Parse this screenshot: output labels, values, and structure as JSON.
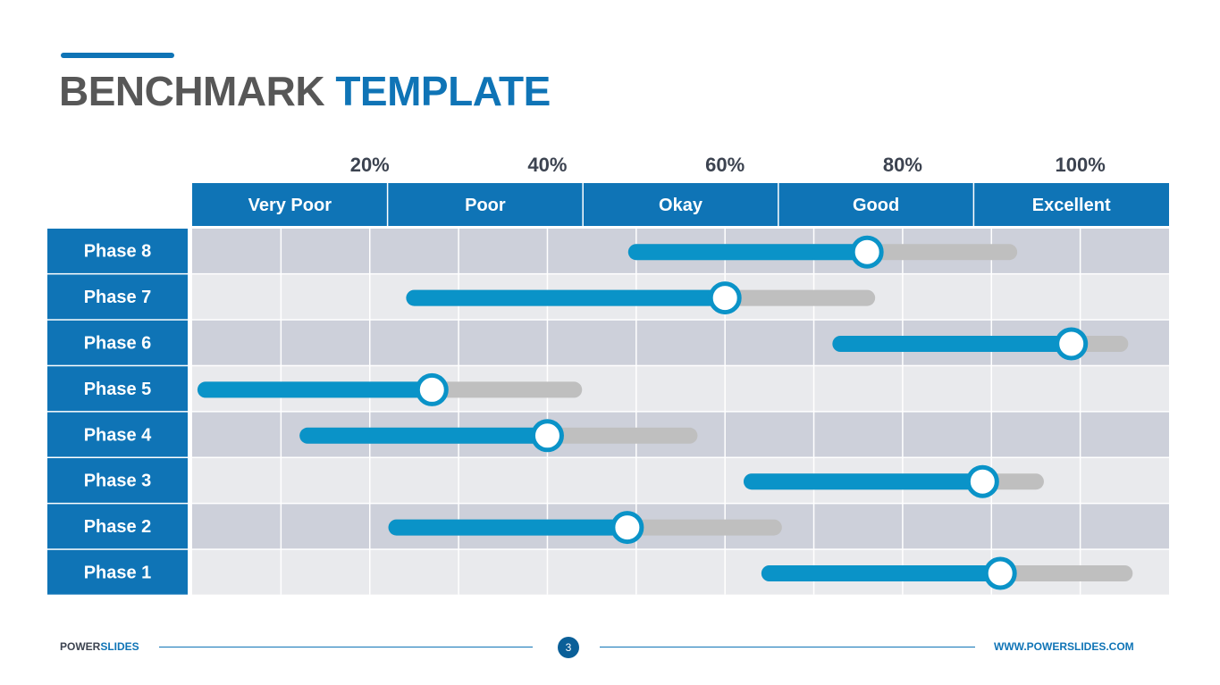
{
  "title": {
    "part1": "BENCHMARK",
    "part2": "TEMPLATE"
  },
  "colors": {
    "brand": "#0f74b6",
    "header_fill": "#0f74b6",
    "row_dark": "#cdd0da",
    "row_light": "#e9eaed",
    "bar_fill": "#0a93c8",
    "bar_track": "#bfbfbf",
    "knob_stroke": "#0a93c8"
  },
  "footer": {
    "brand_part1": "POWER",
    "brand_part2": "SLIDES",
    "page_number": "3",
    "url": "WWW.POWERSLIDES.COM"
  },
  "chart_data": {
    "type": "table",
    "description_type": "range-slider benchmark",
    "xlim": [
      0,
      110
    ],
    "ticks": [
      {
        "value": 20,
        "label": "20%"
      },
      {
        "value": 40,
        "label": "40%"
      },
      {
        "value": 60,
        "label": "60%"
      },
      {
        "value": 80,
        "label": "80%"
      },
      {
        "value": 100,
        "label": "100%"
      }
    ],
    "bands": [
      "Very Poor",
      "Poor",
      "Okay",
      "Good",
      "Excellent"
    ],
    "grid": true,
    "rows": [
      {
        "label": "Phase 8",
        "start": 50,
        "value": 76,
        "end": 92
      },
      {
        "label": "Phase 7",
        "start": 25,
        "value": 60,
        "end": 76
      },
      {
        "label": "Phase 6",
        "start": 73,
        "value": 99,
        "end": 104.5
      },
      {
        "label": "Phase 5",
        "start": 1.5,
        "value": 27,
        "end": 43
      },
      {
        "label": "Phase 4",
        "start": 13,
        "value": 40,
        "end": 56
      },
      {
        "label": "Phase 3",
        "start": 63,
        "value": 89,
        "end": 95
      },
      {
        "label": "Phase 2",
        "start": 23,
        "value": 49,
        "end": 65.5
      },
      {
        "label": "Phase 1",
        "start": 65,
        "value": 91,
        "end": 105
      }
    ]
  }
}
